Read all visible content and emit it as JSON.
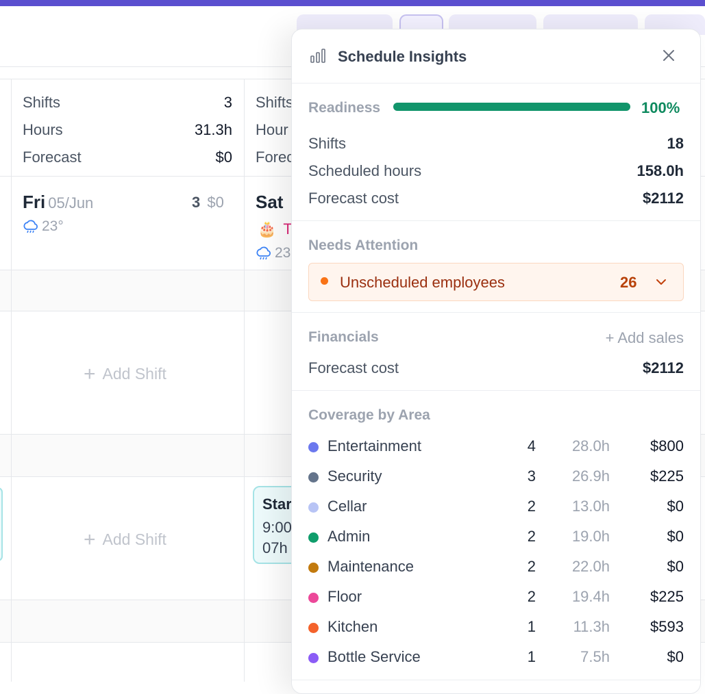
{
  "background": {
    "week_stats": [
      {
        "label": "Shifts",
        "value": "3"
      },
      {
        "label": "Hours",
        "value": "31.3h"
      },
      {
        "label": "Forecast",
        "value": "$0"
      }
    ],
    "next_stats_partial": [
      "Shifts",
      "Hour",
      "Forec"
    ],
    "friday": {
      "name": "Fri",
      "date": "05/Jun",
      "count": "3",
      "cost": "$0",
      "weather": "23°"
    },
    "saturday": {
      "name": "Sat",
      "event_partial": "T",
      "weather_partial": "23"
    },
    "add_shift_label": "Add Shift",
    "shift_card": {
      "title_partial": "Star",
      "time_partial": "9:00",
      "duration_partial": "07h"
    }
  },
  "panel": {
    "title": "Schedule Insights",
    "readiness": {
      "label": "Readiness",
      "value_text": "100%",
      "fraction": 1.0
    },
    "summary": [
      {
        "label": "Shifts",
        "value": "18"
      },
      {
        "label": "Scheduled hours",
        "value": "158.0h"
      },
      {
        "label": "Forecast cost",
        "value": "$2112"
      }
    ],
    "needs_attention": {
      "title": "Needs Attention",
      "alert": {
        "label": "Unscheduled employees",
        "count": "26"
      }
    },
    "financials": {
      "title": "Financials",
      "add_sales": "+ Add sales",
      "forecast_label": "Forecast cost",
      "forecast_value": "$2112"
    },
    "coverage": {
      "title": "Coverage by Area",
      "areas": [
        {
          "name": "Entertainment",
          "count": "4",
          "hours": "28.0h",
          "cost": "$800",
          "color": "#6b78ee"
        },
        {
          "name": "Security",
          "count": "3",
          "hours": "26.9h",
          "cost": "$225",
          "color": "#64748b"
        },
        {
          "name": "Cellar",
          "count": "2",
          "hours": "13.0h",
          "cost": "$0",
          "color": "#b8c4f5"
        },
        {
          "name": "Admin",
          "count": "2",
          "hours": "19.0h",
          "cost": "$0",
          "color": "#0f9d6b"
        },
        {
          "name": "Maintenance",
          "count": "2",
          "hours": "22.0h",
          "cost": "$0",
          "color": "#c27a0e"
        },
        {
          "name": "Floor",
          "count": "2",
          "hours": "19.4h",
          "cost": "$225",
          "color": "#ec4899"
        },
        {
          "name": "Kitchen",
          "count": "1",
          "hours": "11.3h",
          "cost": "$593",
          "color": "#f4622b"
        },
        {
          "name": "Bottle Service",
          "count": "1",
          "hours": "7.5h",
          "cost": "$0",
          "color": "#8b5cf6"
        }
      ]
    }
  }
}
